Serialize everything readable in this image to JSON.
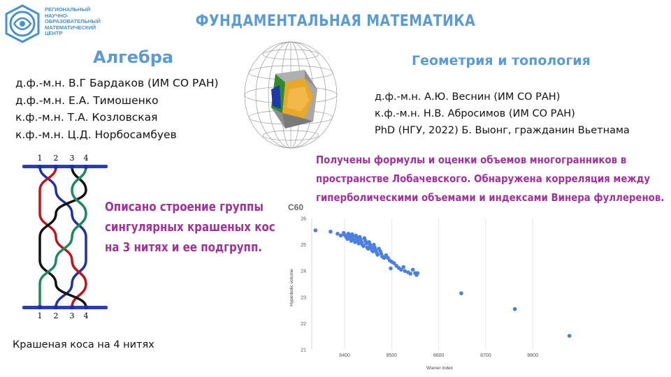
{
  "header": {
    "org_lines": [
      "РЕГИОНАЛЬНЫЙ",
      "НАУЧНО-",
      "ОБРАЗОВАТЕЛЬНЫЙ",
      "МАТЕМАТИЧЕСКИЙ",
      "ЦЕНТР"
    ],
    "title": "ФУНДАМЕНТАЛЬНАЯ МАТЕМАТИКА"
  },
  "algebra": {
    "title": "Алгебра",
    "people": [
      "д.ф.-м.н. В.Г Бардаков (ИМ СО РАН)",
      "д.ф.-м.н. Е.А. Тимошенко",
      "к.ф.-м.н. Т.А. Козловская",
      "к.ф.-м.н. Ц.Д. Норбосамбуев"
    ]
  },
  "geometry": {
    "title": "Геометрия и топология",
    "people": [
      "д.ф.-м.н. А.Ю. Веснин (ИМ СО РАН)",
      "к.ф.-м.н. Н.В. Абросимов (ИМ СО РАН)",
      "PhD (НГУ, 2022) Б. Выонг, гражданин Вьетнама"
    ],
    "result_lines": [
      "Получены формулы и оценки объемов многогранников в",
      "пространстве Лобачевского. Обнаружена корреляция между",
      "гиперболическими объемами и индексами Винера фуллеренов."
    ]
  },
  "braid": {
    "top_labels": [
      "1",
      "2",
      "3",
      "4"
    ],
    "bottom_labels": [
      "1",
      "2",
      "3",
      "4"
    ],
    "result_lines": [
      "Описано строение группы",
      "сингулярных крашеных кос",
      "на 3 нитях и ее подгрупп."
    ],
    "caption": "Крашеная коса на 4 нитях"
  },
  "colors": {
    "title_blue": "#5b9bd5",
    "result_purple": "#a0329c",
    "point_blue": "#4a7fe0",
    "braid_blue": "#1f2fa8",
    "braid_red": "#c0141c",
    "braid_green": "#1a8a5a",
    "braid_black": "#111111"
  },
  "chart_data": {
    "type": "scatter",
    "title": "C60",
    "xlabel": "Wiener index",
    "ylabel": "Hyperbolic volume",
    "xlim": [
      8330,
      8880
    ],
    "ylim": [
      21,
      26
    ],
    "x_ticks": [
      8400,
      8500,
      8600,
      8700,
      8800
    ],
    "y_ticks": [
      21,
      22,
      23,
      24,
      25,
      26
    ],
    "grid": "vertical",
    "series": [
      {
        "points": [
          [
            8338,
            25.55
          ],
          [
            8370,
            25.5
          ],
          [
            8385,
            25.42
          ],
          [
            8392,
            25.35
          ],
          [
            8398,
            25.45
          ],
          [
            8400,
            25.38
          ],
          [
            8403,
            25.3
          ],
          [
            8406,
            25.22
          ],
          [
            8408,
            25.42
          ],
          [
            8410,
            25.33
          ],
          [
            8412,
            25.25
          ],
          [
            8414,
            25.15
          ],
          [
            8416,
            25.4
          ],
          [
            8418,
            25.3
          ],
          [
            8420,
            25.2
          ],
          [
            8422,
            25.1
          ],
          [
            8424,
            25.35
          ],
          [
            8426,
            25.25
          ],
          [
            8428,
            25.15
          ],
          [
            8430,
            25.05
          ],
          [
            8432,
            25.3
          ],
          [
            8434,
            25.2
          ],
          [
            8436,
            25.1
          ],
          [
            8438,
            25.0
          ],
          [
            8440,
            24.95
          ],
          [
            8442,
            25.25
          ],
          [
            8444,
            25.15
          ],
          [
            8446,
            25.05
          ],
          [
            8448,
            24.9
          ],
          [
            8450,
            24.85
          ],
          [
            8452,
            25.1
          ],
          [
            8454,
            25.0
          ],
          [
            8456,
            24.9
          ],
          [
            8458,
            24.8
          ],
          [
            8460,
            24.75
          ],
          [
            8462,
            25.0
          ],
          [
            8464,
            24.9
          ],
          [
            8466,
            24.8
          ],
          [
            8468,
            24.7
          ],
          [
            8470,
            24.62
          ],
          [
            8473,
            24.85
          ],
          [
            8476,
            24.75
          ],
          [
            8478,
            24.65
          ],
          [
            8480,
            24.55
          ],
          [
            8484,
            24.5
          ],
          [
            8488,
            24.6
          ],
          [
            8492,
            24.5
          ],
          [
            8496,
            24.4
          ],
          [
            8500,
            24.35
          ],
          [
            8505,
            24.3
          ],
          [
            8510,
            24.2
          ],
          [
            8515,
            24.12
          ],
          [
            8520,
            24.05
          ],
          [
            8525,
            24.15
          ],
          [
            8528,
            24.0
          ],
          [
            8535,
            23.95
          ],
          [
            8540,
            23.9
          ],
          [
            8545,
            24.05
          ],
          [
            8550,
            23.92
          ],
          [
            8553,
            23.85
          ],
          [
            8555,
            23.92
          ],
          [
            8498,
            24.1
          ],
          [
            8648,
            23.15
          ],
          [
            8762,
            22.55
          ],
          [
            8878,
            21.53
          ]
        ]
      }
    ]
  }
}
